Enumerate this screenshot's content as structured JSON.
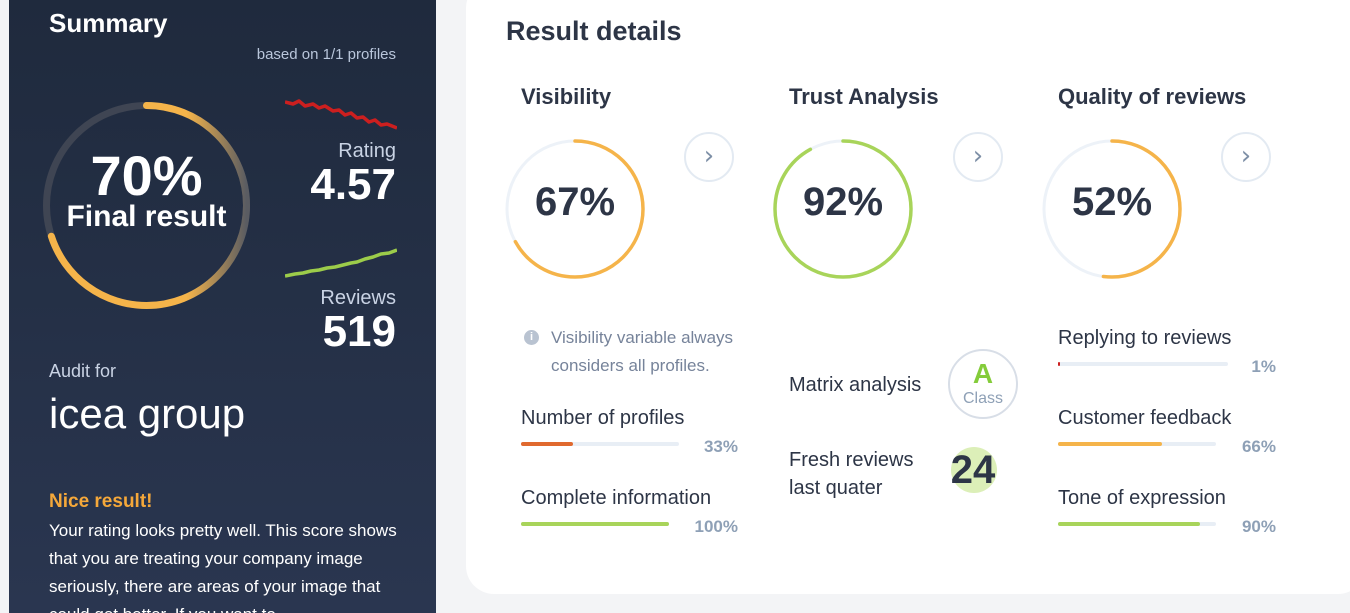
{
  "summary": {
    "title": "Summary",
    "based_on": "based on 1/1 profiles",
    "final_percent": "70%",
    "final_percent_value": 70,
    "final_label": "Final result",
    "rating_label": "Rating",
    "rating_value": "4.57",
    "reviews_label": "Reviews",
    "reviews_value": "519",
    "audit_for": "Audit for",
    "company": "icea group",
    "nice_result": "Nice result!",
    "result_text": "Your rating looks pretty well. This score shows that you are treating your company image seriously, there are areas of your image that could get better. If you want to"
  },
  "details": {
    "title": "Result details",
    "visibility": {
      "title": "Visibility",
      "percent": "67%",
      "value": 67,
      "note": "Visibility variable always considers all profiles.",
      "metrics": [
        {
          "label": "Number of profiles",
          "percent": "33%",
          "value": 33
        },
        {
          "label": "Complete information",
          "percent": "100%",
          "value": 100
        }
      ]
    },
    "trust": {
      "title": "Trust Analysis",
      "percent": "92%",
      "value": 92,
      "matrix_label": "Matrix analysis",
      "class_letter": "A",
      "class_word": "Class",
      "fresh_label": "Fresh reviews last quater",
      "fresh_value": "24"
    },
    "quality": {
      "title": "Quality of reviews",
      "percent": "52%",
      "value": 52,
      "metrics": [
        {
          "label": "Replying to reviews",
          "percent": "1%",
          "value": 1
        },
        {
          "label": "Customer feedback",
          "percent": "66%",
          "value": 66
        },
        {
          "label": "Tone of expression",
          "percent": "90%",
          "value": 90
        }
      ]
    }
  },
  "icons": {
    "arrow": "chevron-right-icon",
    "info": "info-icon"
  },
  "colors": {
    "orange": "#f5b44a",
    "green": "#a8d45a",
    "red_bar": "#e0692e",
    "rating_spark": "#cc1f1f",
    "reviews_spark": "#9ccc4a"
  }
}
